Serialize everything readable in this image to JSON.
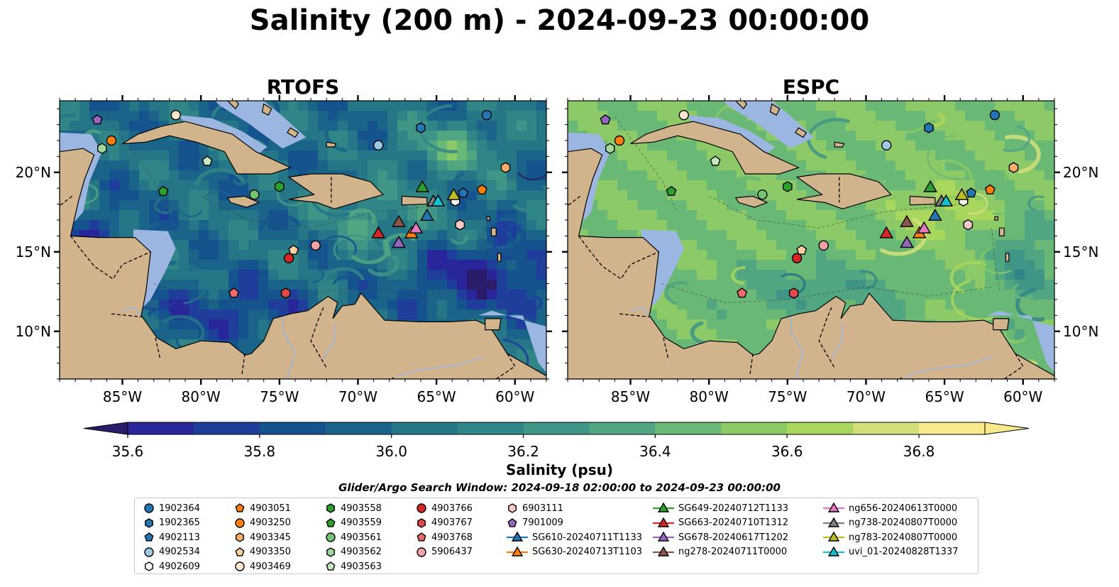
{
  "title": "Salinity (200 m) - 2024-09-23 00:00:00",
  "colors": {
    "land": "#d2b48c",
    "shallow_water": "#9bb6e0",
    "colormap": [
      "#2a1c6b",
      "#29259a",
      "#1f3e9c",
      "#15538f",
      "#1a6489",
      "#257687",
      "#308686",
      "#3f9586",
      "#50a681",
      "#6ab875",
      "#8bca66",
      "#a9d65c",
      "#d3e07a",
      "#f6ea8c"
    ]
  },
  "panels": [
    {
      "id": "rtofs",
      "title": "RTOFS"
    },
    {
      "id": "espc",
      "title": "ESPC"
    }
  ],
  "axes": {
    "x_ticks": [
      "85°W",
      "80°W",
      "75°W",
      "70°W",
      "65°W",
      "60°W"
    ],
    "y_ticks": [
      "20°N",
      "15°N",
      "10°N"
    ],
    "lon_range": [
      -89,
      -58
    ],
    "lat_range": [
      7,
      24.5
    ],
    "x_tick_values": [
      -85,
      -80,
      -75,
      -70,
      -65,
      -60
    ],
    "y_tick_values": [
      20,
      15,
      10
    ]
  },
  "colorbar": {
    "label": "Salinity (psu)",
    "ticks": [
      "35.6",
      "35.8",
      "36.0",
      "36.2",
      "36.4",
      "36.6",
      "36.8"
    ],
    "range": [
      35.55,
      36.95
    ],
    "extend": "both"
  },
  "search_window": "Glider/Argo Search Window: 2024-09-18 02:00:00 to 2024-09-23 00:00:00",
  "chart_data": {
    "type": "map",
    "variable": "Salinity (200 m)",
    "units": "psu",
    "time": "2024-09-23 00:00:00",
    "observations": [
      {
        "name": "1902364",
        "type": "argo",
        "marker": "circle",
        "color": "#1f77b4",
        "lon": -61.8,
        "lat": 23.6
      },
      {
        "name": "1902365",
        "type": "argo",
        "marker": "hexagon",
        "color": "#1f77b4",
        "lon": -66.0,
        "lat": 22.8
      },
      {
        "name": "4902113",
        "type": "argo",
        "marker": "pentagon",
        "color": "#1f77b4",
        "lon": -63.3,
        "lat": 18.7
      },
      {
        "name": "4902534",
        "type": "argo",
        "marker": "circle",
        "color": "#9ecae1",
        "lon": -68.7,
        "lat": 21.7
      },
      {
        "name": "4902609",
        "type": "argo",
        "marker": "hexagon",
        "color": "#ffffff",
        "lon": -63.8,
        "lat": 18.2
      },
      {
        "name": "4903051",
        "type": "argo",
        "marker": "pentagon",
        "color": "#ff7f0e",
        "lon": -62.1,
        "lat": 18.9
      },
      {
        "name": "4903250",
        "type": "argo",
        "marker": "circle",
        "color": "#ff7f0e",
        "lon": -85.7,
        "lat": 22.0
      },
      {
        "name": "4903345",
        "type": "argo",
        "marker": "hexagon",
        "color": "#fdae6b",
        "lon": -60.6,
        "lat": 20.3
      },
      {
        "name": "4903350",
        "type": "argo",
        "marker": "pentagon",
        "color": "#fdd0a2",
        "lon": -74.1,
        "lat": 15.1
      },
      {
        "name": "4903469",
        "type": "argo",
        "marker": "circle",
        "color": "#fee6ce",
        "lon": -81.6,
        "lat": 23.6
      },
      {
        "name": "4903558",
        "type": "argo",
        "marker": "hexagon",
        "color": "#2ca02c",
        "lon": -75.0,
        "lat": 19.1
      },
      {
        "name": "4903559",
        "type": "argo",
        "marker": "pentagon",
        "color": "#2ca02c",
        "lon": -82.4,
        "lat": 18.8
      },
      {
        "name": "4903561",
        "type": "argo",
        "marker": "circle",
        "color": "#74c476",
        "lon": -76.6,
        "lat": 18.6
      },
      {
        "name": "4903562",
        "type": "argo",
        "marker": "hexagon",
        "color": "#a1d99b",
        "lon": -86.3,
        "lat": 21.5
      },
      {
        "name": "4903563",
        "type": "argo",
        "marker": "pentagon",
        "color": "#c7e9c0",
        "lon": -79.6,
        "lat": 20.7
      },
      {
        "name": "4903766",
        "type": "argo",
        "marker": "circle",
        "color": "#d62728",
        "lon": -74.4,
        "lat": 14.6
      },
      {
        "name": "4903767",
        "type": "argo",
        "marker": "hexagon",
        "color": "#e34a4a",
        "lon": -74.6,
        "lat": 12.4
      },
      {
        "name": "4903768",
        "type": "argo",
        "marker": "pentagon",
        "color": "#ef6b6b",
        "lon": -77.9,
        "lat": 12.4
      },
      {
        "name": "5906437",
        "type": "argo",
        "marker": "circle",
        "color": "#f4a3a3",
        "lon": -72.7,
        "lat": 15.4
      },
      {
        "name": "6903111",
        "type": "argo",
        "marker": "hexagon",
        "color": "#f8c9c9",
        "lon": -63.5,
        "lat": 16.7
      },
      {
        "name": "7901009",
        "type": "argo",
        "marker": "pentagon",
        "color": "#9467bd",
        "lon": -86.6,
        "lat": 23.3
      },
      {
        "name": "SG610-20240711T1133",
        "type": "glider",
        "marker": "triangle",
        "color": "#1f77b4",
        "lon": -65.6,
        "lat": 17.3
      },
      {
        "name": "SG630-20240713T1103",
        "type": "glider",
        "marker": "triangle",
        "color": "#ff7f0e",
        "lon": -66.6,
        "lat": 16.2
      },
      {
        "name": "SG649-20240712T1133",
        "type": "glider",
        "marker": "triangle",
        "color": "#2ca02c",
        "lon": -65.9,
        "lat": 19.1
      },
      {
        "name": "SG663-20240710T1312",
        "type": "glider",
        "marker": "triangle",
        "color": "#d62728",
        "lon": -68.7,
        "lat": 16.2
      },
      {
        "name": "SG678-20240617T1202",
        "type": "glider",
        "marker": "triangle",
        "color": "#9467bd",
        "lon": -67.4,
        "lat": 15.6
      },
      {
        "name": "ng278-20240711T0000",
        "type": "glider",
        "marker": "triangle",
        "color": "#8c564b",
        "lon": -67.4,
        "lat": 16.9
      },
      {
        "name": "ng656-20240613T0000",
        "type": "glider",
        "marker": "triangle",
        "color": "#e377c2",
        "lon": -66.3,
        "lat": 16.5
      },
      {
        "name": "ng738-20240807T0000",
        "type": "glider",
        "marker": "triangle",
        "color": "#7f7f7f",
        "lon": -65.2,
        "lat": 18.2
      },
      {
        "name": "ng783-20240807T0000",
        "type": "glider",
        "marker": "triangle",
        "color": "#bcbd22",
        "lon": -63.9,
        "lat": 18.6
      },
      {
        "name": "uvi_01-20240828T1337",
        "type": "glider",
        "marker": "triangle",
        "color": "#17becf",
        "lon": -64.9,
        "lat": 18.2
      }
    ]
  }
}
